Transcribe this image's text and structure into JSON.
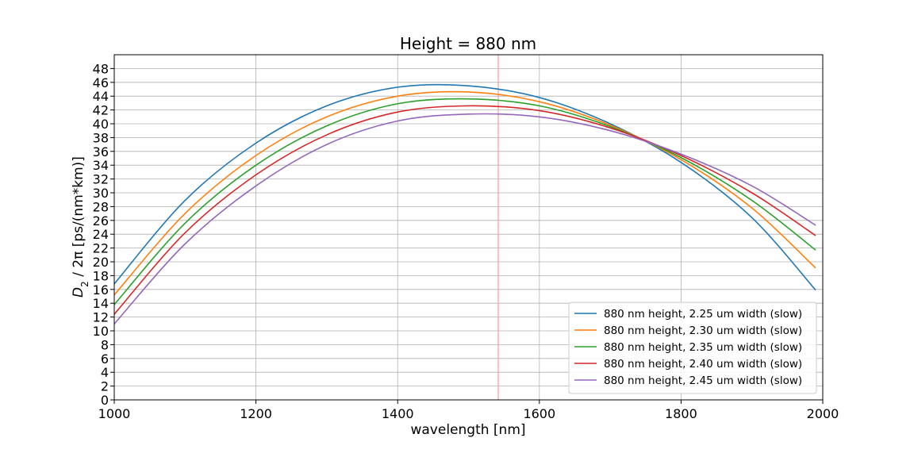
{
  "chart_data": {
    "type": "line",
    "title": "Height = 880 nm",
    "xlabel": "wavelength [nm]",
    "ylabel_parts": {
      "d": "D",
      "sub": "2",
      "rest": " / 2π [ps/(nm*km)]"
    },
    "xlim": [
      1000,
      2000
    ],
    "ylim": [
      0,
      50
    ],
    "xticks": [
      1000,
      1200,
      1400,
      1600,
      1800,
      2000
    ],
    "yticks": [
      0,
      2,
      4,
      6,
      8,
      10,
      12,
      14,
      16,
      18,
      20,
      22,
      24,
      26,
      28,
      30,
      32,
      34,
      36,
      38,
      40,
      42,
      44,
      46,
      48
    ],
    "grid": true,
    "legend_position": "lower-right",
    "vline": {
      "x": 1542,
      "color": "#ff9999"
    },
    "x": [
      1000,
      1100,
      1200,
      1300,
      1400,
      1500,
      1600,
      1700,
      1800,
      1900,
      1990
    ],
    "series": [
      {
        "name": "880 nm height, 2.25 um width (slow)",
        "color": "#1f77b4",
        "values": [
          16.8,
          28.9,
          37.2,
          42.6,
          45.3,
          45.5,
          43.8,
          40.0,
          34.4,
          26.4,
          15.9
        ]
      },
      {
        "name": "880 nm height, 2.30 um width (slow)",
        "color": "#ff7f0e",
        "values": [
          15.2,
          27.0,
          35.4,
          41.0,
          44.0,
          44.6,
          43.2,
          39.8,
          34.8,
          27.8,
          19.1
        ]
      },
      {
        "name": "880 nm height, 2.35 um width (slow)",
        "color": "#2ca02c",
        "values": [
          13.8,
          25.6,
          34.0,
          39.7,
          42.9,
          43.6,
          42.6,
          39.6,
          35.1,
          28.9,
          21.7
        ]
      },
      {
        "name": "880 nm height, 2.40 um width (slow)",
        "color": "#d62728",
        "values": [
          12.4,
          24.2,
          32.6,
          38.4,
          41.7,
          42.6,
          41.9,
          39.4,
          35.4,
          30.0,
          23.8
        ]
      },
      {
        "name": "880 nm height, 2.45 um width (slow)",
        "color": "#9467bd",
        "values": [
          11.0,
          22.6,
          31.0,
          37.0,
          40.4,
          41.4,
          41.0,
          39.0,
          35.6,
          31.0,
          25.3
        ]
      }
    ]
  }
}
